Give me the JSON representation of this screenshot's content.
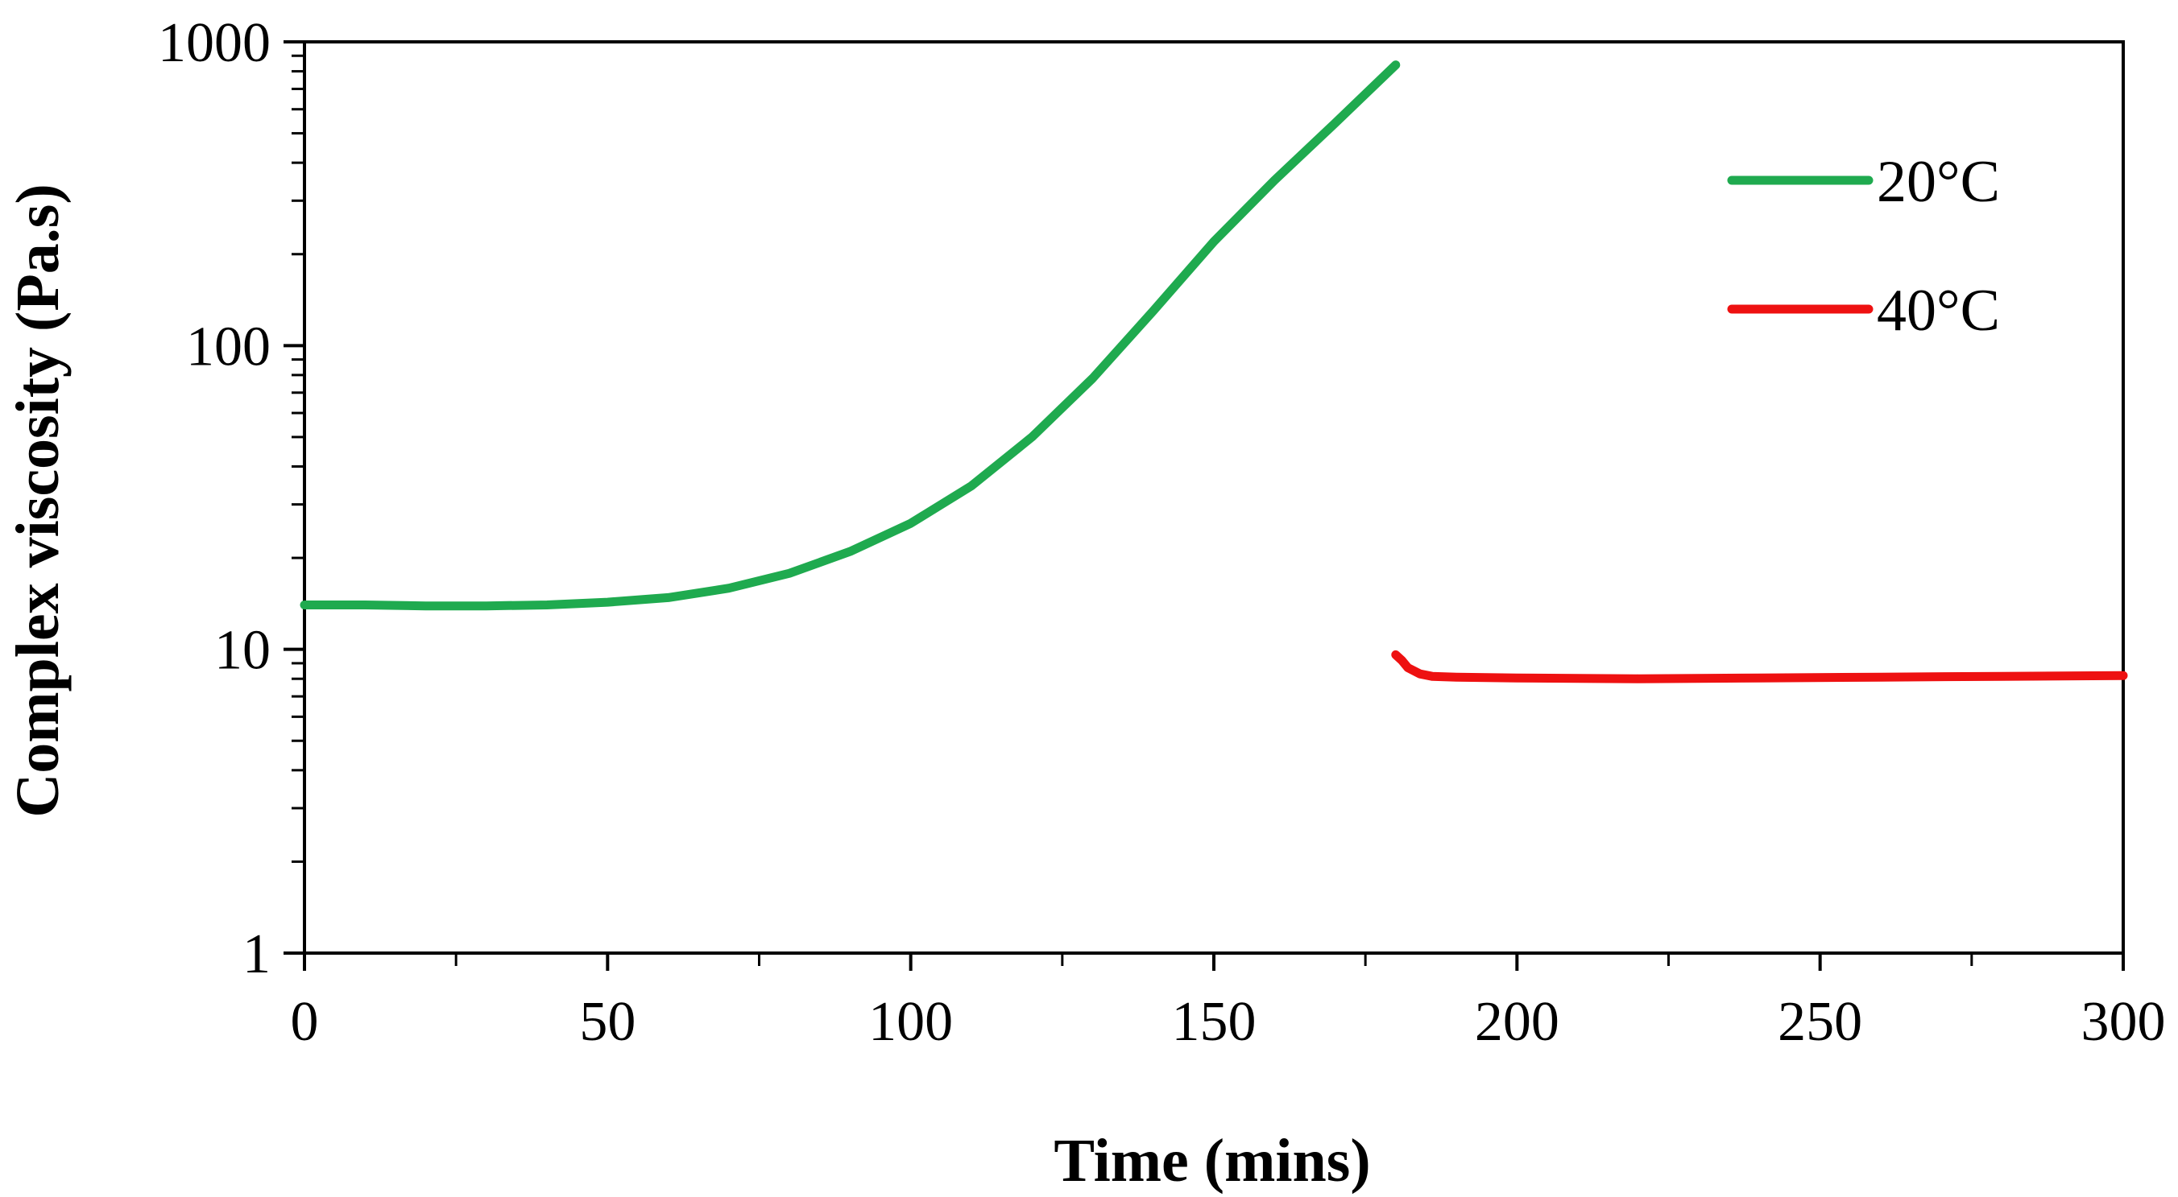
{
  "chart_data": {
    "type": "line",
    "title": "",
    "xlabel": "Time (mins)",
    "ylabel": "Complex viscosity (Pa.s)",
    "xlim": [
      0,
      300
    ],
    "ylim": [
      1,
      1000
    ],
    "yscale": "log",
    "grid": false,
    "legend_position": "top-right",
    "x_ticks": [
      0,
      50,
      100,
      150,
      200,
      250,
      300
    ],
    "x_tick_labels": [
      "0",
      "50",
      "100",
      "150",
      "200",
      "250",
      "300"
    ],
    "y_ticks": [
      1,
      10,
      100,
      1000
    ],
    "y_tick_labels": [
      "1",
      "10",
      "100",
      "1000"
    ],
    "series": [
      {
        "name": "20°C",
        "color": "#1faa4f",
        "points": [
          [
            0,
            14.0
          ],
          [
            10,
            14.0
          ],
          [
            20,
            13.9
          ],
          [
            30,
            13.9
          ],
          [
            40,
            14.0
          ],
          [
            50,
            14.3
          ],
          [
            60,
            14.8
          ],
          [
            70,
            15.9
          ],
          [
            80,
            17.8
          ],
          [
            90,
            21.0
          ],
          [
            100,
            26.0
          ],
          [
            110,
            34.5
          ],
          [
            120,
            50.0
          ],
          [
            130,
            78.0
          ],
          [
            140,
            130.0
          ],
          [
            150,
            220.0
          ],
          [
            160,
            350.0
          ],
          [
            170,
            540.0
          ],
          [
            180,
            840.0
          ]
        ]
      },
      {
        "name": "40°C",
        "color": "#ee1111",
        "points": [
          [
            180,
            9.6
          ],
          [
            181,
            9.2
          ],
          [
            182,
            8.7
          ],
          [
            184,
            8.3
          ],
          [
            186,
            8.15
          ],
          [
            190,
            8.1
          ],
          [
            200,
            8.05
          ],
          [
            220,
            8.0
          ],
          [
            240,
            8.05
          ],
          [
            260,
            8.1
          ],
          [
            280,
            8.15
          ],
          [
            300,
            8.2
          ]
        ]
      }
    ]
  }
}
